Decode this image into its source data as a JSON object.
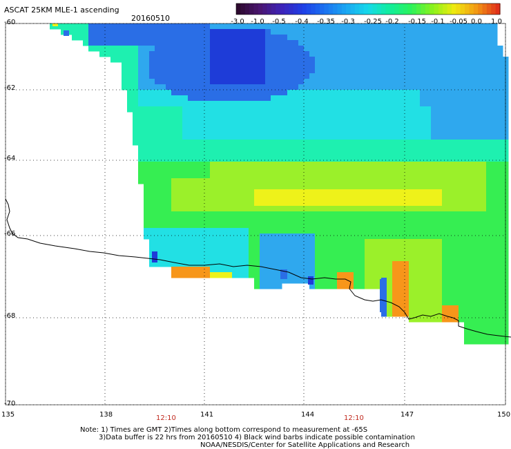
{
  "header": {
    "title": "ASCAT 25KM MLE-1 ascending",
    "date": "20160510"
  },
  "colorbar": {
    "ticks": [
      "-3.0",
      "-1.0",
      "-0.5",
      "-0.4",
      "-0.35",
      "-0.3",
      "-0.25",
      "-0.2",
      "-0.15",
      "-0.1",
      "-0.05",
      "0.0",
      "1.0"
    ],
    "colors": [
      "#2d0a2f",
      "#4a1670",
      "#3d23b8",
      "#1e3fe6",
      "#1b72f0",
      "#1aa7f2",
      "#16d9ea",
      "#10ee9c",
      "#2cf25a",
      "#8cf21c",
      "#f0ea10",
      "#f29a14",
      "#e0321a"
    ]
  },
  "map": {
    "lat_labels": [
      "-60",
      "-62",
      "-64",
      "-66",
      "-68",
      "-70"
    ],
    "lon_labels": [
      "135",
      "138",
      "141",
      "144",
      "147",
      "150"
    ],
    "time_labels": [
      "12:10",
      "12:10"
    ],
    "palette": {
      "deep_blue": "#1e3cd8",
      "blue": "#2a6ee6",
      "light_blue": "#2fa8ee",
      "cyan": "#22e0e4",
      "aqua": "#1ef0b0",
      "green": "#36ee52",
      "lime": "#9bf02a",
      "yellow": "#eef21a",
      "orange": "#f7961a"
    }
  },
  "footer": {
    "line1": "Note: 1) Times are GMT 2)Times along bottom correspond to measurement at -65S",
    "line2": "3)Data buffer is 22 hrs from 20160510 4) Black wind barbs indicate possible contamination",
    "line3": "NOAA/NESDIS/Center for Satellite Applications and Research"
  }
}
